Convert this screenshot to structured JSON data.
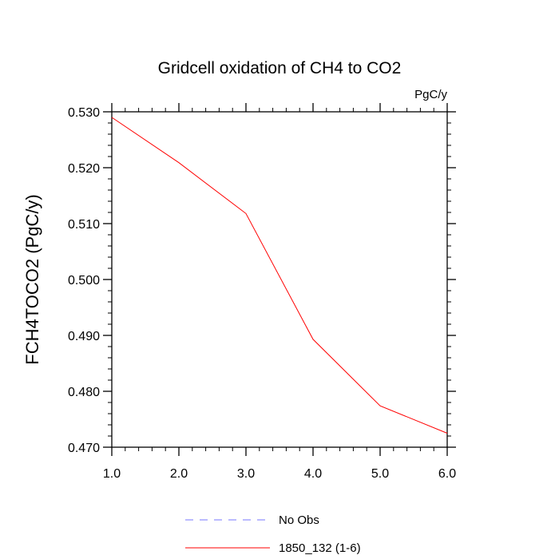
{
  "chart_data": {
    "type": "line",
    "title": "Gridcell oxidation of CH4 to CO2",
    "units": "PgC/y",
    "xlabel": "",
    "ylabel": "FCH4TOCO2  (PgC/y)",
    "xlim": [
      1.0,
      6.0
    ],
    "ylim": [
      0.47,
      0.53
    ],
    "x_ticks": [
      "1.0",
      "2.0",
      "3.0",
      "4.0",
      "5.0",
      "6.0"
    ],
    "y_ticks": [
      "0.470",
      "0.480",
      "0.490",
      "0.500",
      "0.510",
      "0.520",
      "0.530"
    ],
    "series": [
      {
        "name": "1850_132 (1-6)",
        "color": "#ff0000",
        "dash": "solid",
        "x": [
          1,
          2,
          3,
          4,
          5,
          6
        ],
        "values": [
          0.529,
          0.5209,
          0.5118,
          0.4893,
          0.4774,
          0.4725
        ]
      }
    ],
    "legend": [
      {
        "label": "No Obs",
        "color": "#7777ff",
        "dash": "dashed"
      },
      {
        "label": "1850_132 (1-6)",
        "color": "#ff0000",
        "dash": "solid"
      }
    ],
    "legend_position": "bottom-center"
  }
}
